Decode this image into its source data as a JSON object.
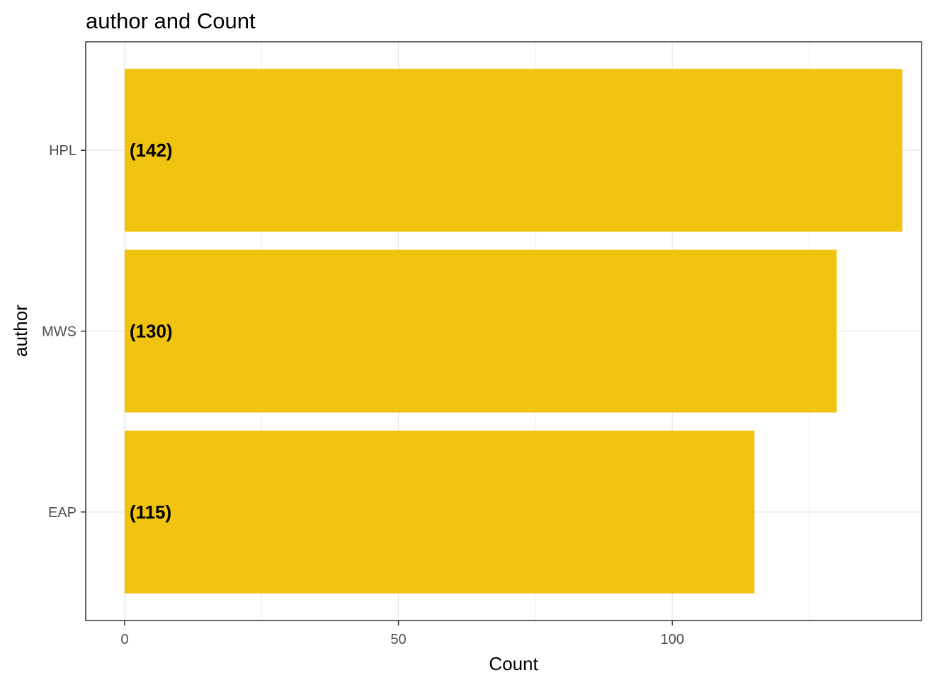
{
  "chart_data": {
    "type": "bar",
    "orientation": "horizontal",
    "title": "author and Count",
    "xlabel": "Count",
    "ylabel": "author",
    "categories": [
      "HPL",
      "MWS",
      "EAP"
    ],
    "values": [
      142,
      130,
      115
    ],
    "data_labels": [
      "(142)",
      "(130)",
      "(115)"
    ],
    "xlim": [
      -7.1,
      145.5
    ],
    "x_ticks": [
      0,
      50,
      100
    ],
    "x_tick_labels": [
      "0",
      "50",
      "100"
    ],
    "grid": true,
    "legend": "none",
    "bar_color": "#f0c30f",
    "grid_color": "#ebebeb",
    "border_color": "#333333"
  }
}
